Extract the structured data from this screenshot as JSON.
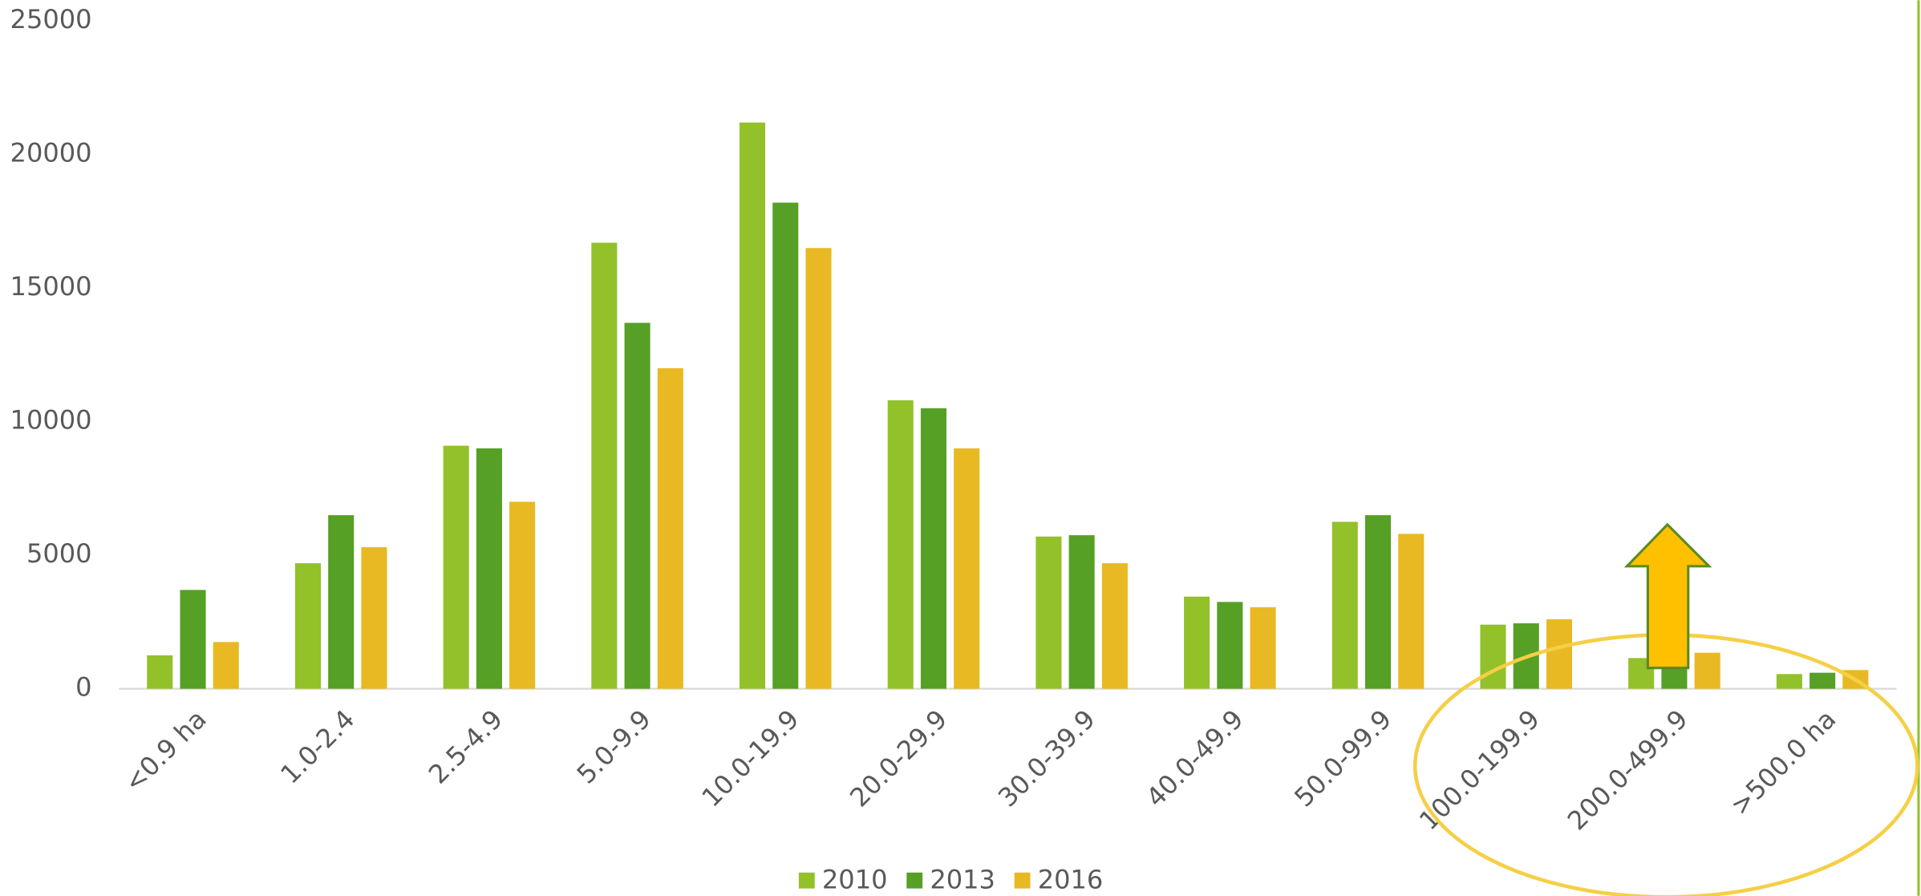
{
  "chart_data": {
    "type": "bar",
    "categories": [
      "<0.9 ha",
      "1.0-2.4",
      "2.5-4.9",
      "5.0-9.9",
      "10.0-19.9",
      "20.0-29.9",
      "30.0-39.9",
      "40.0-49.9",
      "50.0-99.9",
      "100.0-199.9",
      "200.0-499.9",
      ">500.0 ha"
    ],
    "series": [
      {
        "name": "2010",
        "color": "#93c12a",
        "values": [
          1250,
          4700,
          9100,
          16700,
          21200,
          10800,
          5700,
          3450,
          6250,
          2400,
          1150,
          550
        ]
      },
      {
        "name": "2013",
        "color": "#56a025",
        "values": [
          3700,
          6500,
          9000,
          13700,
          18200,
          10500,
          5750,
          3250,
          6500,
          2450,
          1100,
          600
        ]
      },
      {
        "name": "2016",
        "color": "#e8b923",
        "values": [
          1750,
          5300,
          7000,
          12000,
          16500,
          9000,
          4700,
          3050,
          5800,
          2600,
          1350,
          700
        ]
      }
    ],
    "ylim": [
      0,
      25000
    ],
    "yticks": [
      0,
      5000,
      10000,
      15000,
      20000,
      25000
    ],
    "grid": false,
    "legend": "bottom"
  }
}
